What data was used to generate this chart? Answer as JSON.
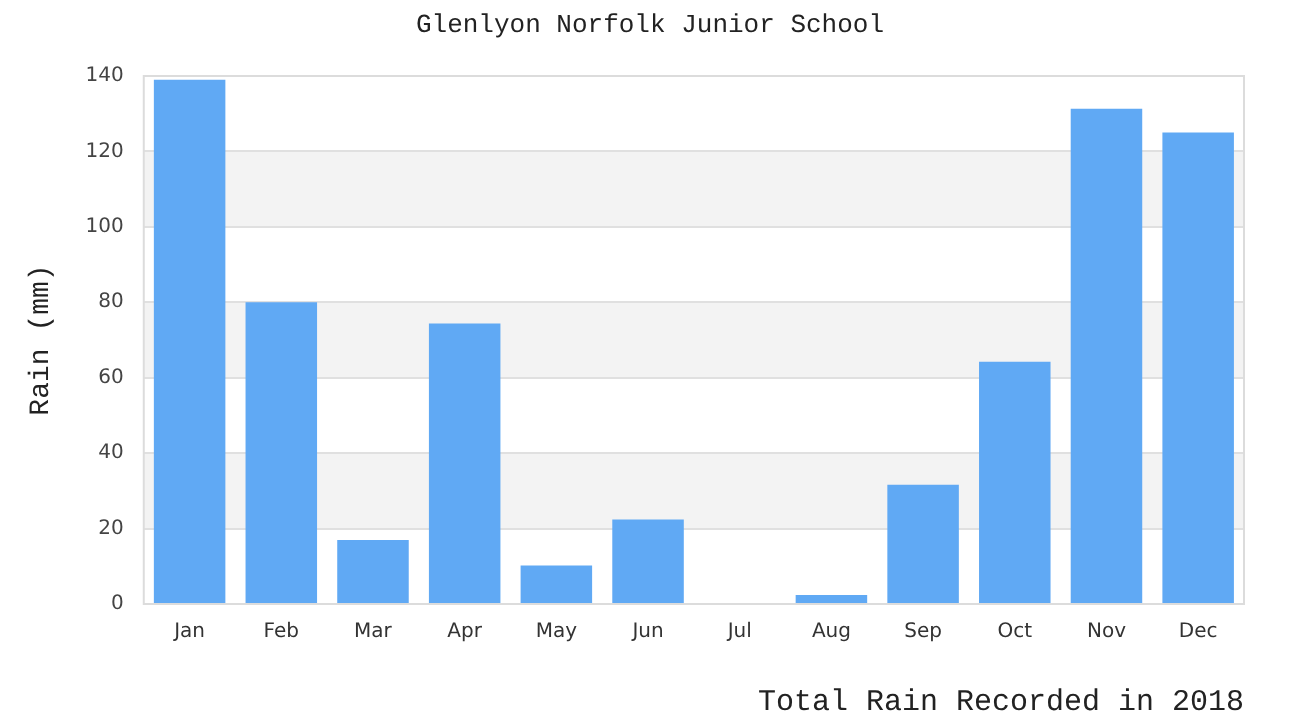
{
  "chart_data": {
    "type": "bar",
    "title": "Glenlyon Norfolk Junior School",
    "ylabel": "Rain (mm)",
    "categories": [
      "Jan",
      "Feb",
      "Mar",
      "Apr",
      "May",
      "Jun",
      "Jul",
      "Aug",
      "Sep",
      "Oct",
      "Nov",
      "Dec"
    ],
    "values": [
      139,
      80,
      17,
      74.4,
      10.2,
      22.4,
      0,
      2.4,
      31.6,
      64.2,
      131.3,
      125
    ],
    "color": "#60a9f4",
    "ylim": [
      0,
      140
    ],
    "yticks": [
      0,
      20,
      40,
      60,
      80,
      100,
      120,
      140
    ],
    "grid": "y",
    "legend": false,
    "annotations": [
      "Total Rain Recorded in 2018"
    ]
  }
}
